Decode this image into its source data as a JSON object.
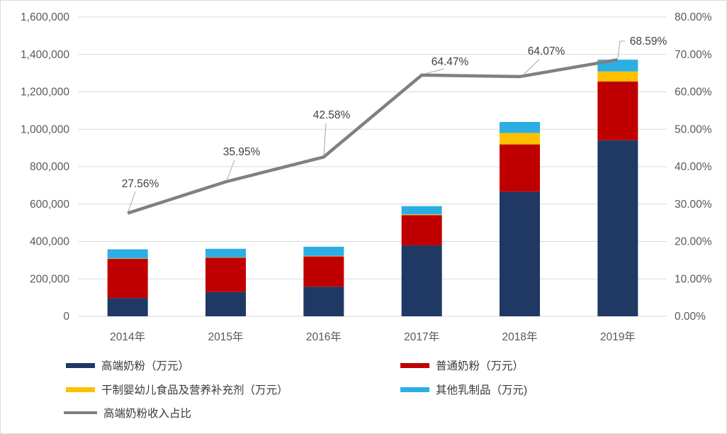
{
  "chart_data": {
    "type": "combo-stacked-bar-line",
    "categories": [
      "2014年",
      "2015年",
      "2016年",
      "2017年",
      "2018年",
      "2019年"
    ],
    "series": [
      {
        "name": "高端奶粉（万元）",
        "type": "bar",
        "color": "#1F3864",
        "values": [
          98000,
          130000,
          158000,
          379000,
          666000,
          941000
        ]
      },
      {
        "name": "普通奶粉（万元）",
        "type": "bar",
        "color": "#C00000",
        "values": [
          210000,
          183000,
          162000,
          162000,
          253000,
          314000
        ]
      },
      {
        "name": "干制婴幼儿食品及营养补充剂（万元）",
        "type": "bar",
        "color": "#FFC000",
        "values": [
          2000,
          2000,
          3000,
          4000,
          61000,
          54000
        ]
      },
      {
        "name": "其他乳制品（万元)",
        "type": "bar",
        "color": "#2BAEE4",
        "values": [
          48000,
          46000,
          49000,
          44000,
          59000,
          63000
        ]
      },
      {
        "name": "高端奶粉收入占比",
        "type": "line",
        "axis": "right",
        "color": "#808080",
        "values_percent": [
          27.56,
          35.95,
          42.58,
          64.47,
          64.07,
          68.59
        ]
      }
    ],
    "line_labels": [
      "27.56%",
      "35.95%",
      "42.58%",
      "64.47%",
      "64.07%",
      "68.59%"
    ],
    "left_axis": {
      "min": 0,
      "max": 1600000,
      "step": 200000,
      "ticks": [
        "0",
        "200,000",
        "400,000",
        "600,000",
        "800,000",
        "1,000,000",
        "1,200,000",
        "1,400,000",
        "1,600,000"
      ]
    },
    "right_axis": {
      "min": 0,
      "max": 80,
      "step": 10,
      "ticks": [
        "0.00%",
        "10.00%",
        "20.00%",
        "30.00%",
        "40.00%",
        "50.00%",
        "60.00%",
        "70.00%",
        "80.00%"
      ]
    },
    "grid": true,
    "gridline_color": "#d9d9d9",
    "label_color": "#404040",
    "tick_color": "#595959"
  },
  "legend": {
    "items": [
      {
        "label": "高端奶粉（万元）",
        "swatch": "bar",
        "color": "#1F3864"
      },
      {
        "label": "普通奶粉（万元）",
        "swatch": "bar",
        "color": "#C00000"
      },
      {
        "label": "干制婴幼儿食品及营养补充剂（万元）",
        "swatch": "bar",
        "color": "#FFC000"
      },
      {
        "label": "其他乳制品（万元)",
        "swatch": "bar",
        "color": "#2BAEE4"
      },
      {
        "label": "高端奶粉收入占比",
        "swatch": "line",
        "color": "#808080"
      }
    ]
  }
}
